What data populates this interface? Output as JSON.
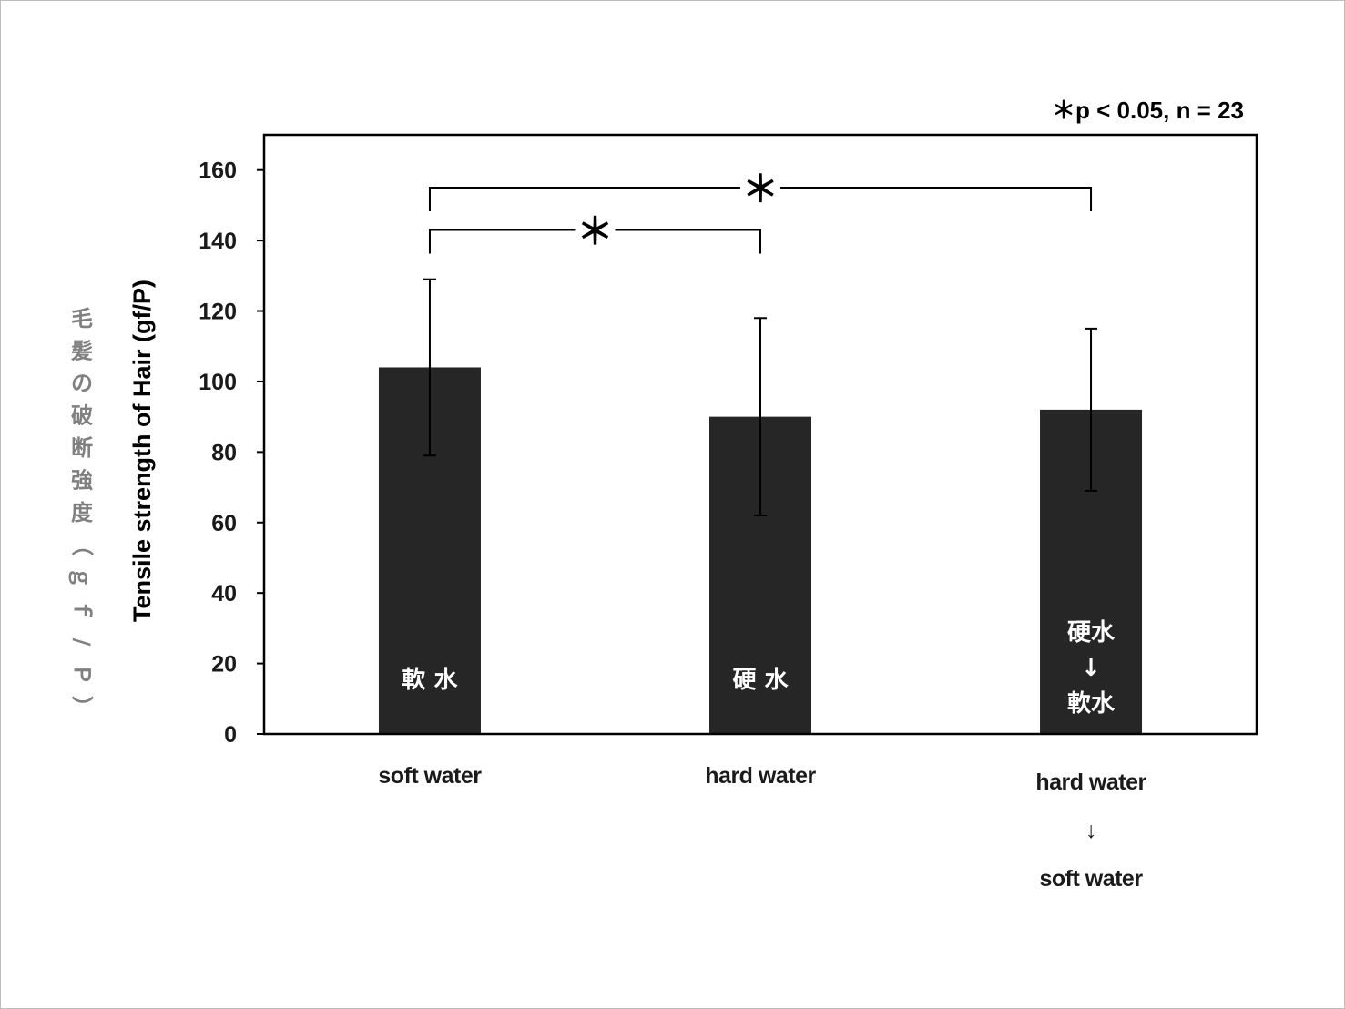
{
  "chart_data": {
    "type": "bar",
    "note": "＊p < 0.05, n = 23",
    "ylabel": "Tensile strength of Hair (gf/P)",
    "ylabel_jp": "毛髪の破断強度（ｇｆ/Ｐ）",
    "ylim": [
      0,
      170
    ],
    "yticks": [
      "0",
      "20",
      "40",
      "60",
      "80",
      "100",
      "120",
      "140",
      "160"
    ],
    "categories": [
      [
        "soft water"
      ],
      [
        "hard water"
      ],
      [
        "hard water",
        "↓",
        "soft water"
      ]
    ],
    "bar_labels": [
      [
        "軟 水"
      ],
      [
        "硬 水"
      ],
      [
        "硬水",
        "↓",
        "軟水"
      ]
    ],
    "values": [
      104,
      90,
      92
    ],
    "errors": [
      25,
      28,
      23
    ],
    "bar_color": "#262626",
    "significance": [
      {
        "from": 0,
        "to": 1,
        "label": "＊",
        "y": 143
      },
      {
        "from": 0,
        "to": 2,
        "label": "＊",
        "y": 155
      }
    ],
    "grid": false
  }
}
